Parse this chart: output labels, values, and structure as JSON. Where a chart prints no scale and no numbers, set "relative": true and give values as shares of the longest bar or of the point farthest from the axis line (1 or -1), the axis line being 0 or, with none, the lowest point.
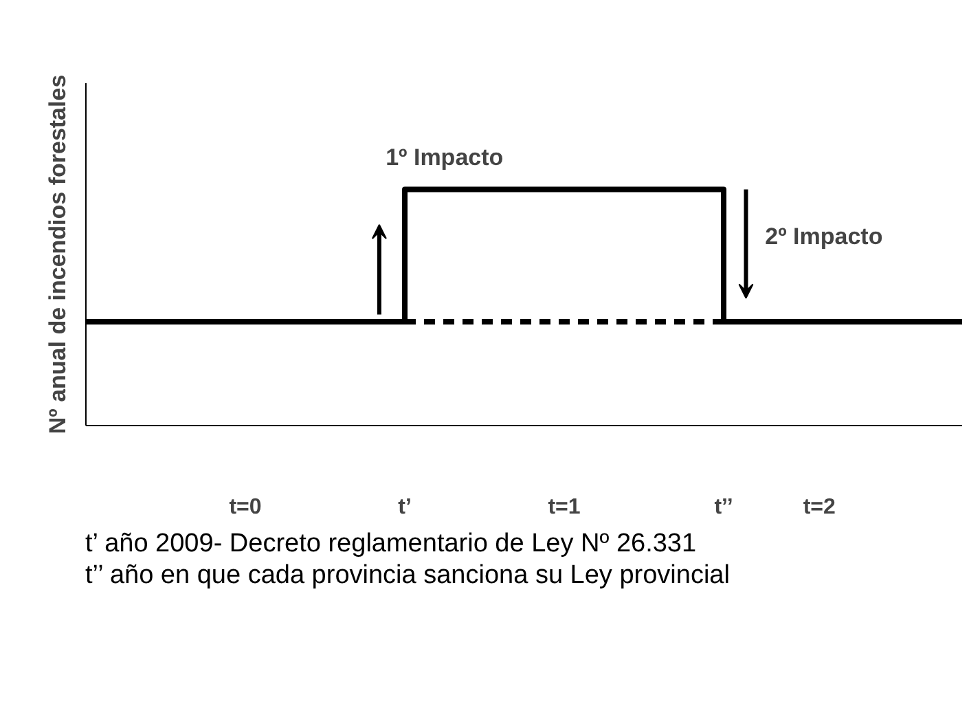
{
  "chart_data": {
    "type": "step",
    "relative": true,
    "ylabel": "Nº anual de incendios forestales",
    "xlim": [
      0,
      2.75
    ],
    "xticks": [
      {
        "value": 0.5,
        "label": "t=0"
      },
      {
        "value": 1,
        "label": "t’"
      },
      {
        "value": 1.5,
        "label": "t=1"
      },
      {
        "value": 2,
        "label": "t’’"
      },
      {
        "value": 2.3,
        "label": "t=2"
      }
    ],
    "series": [
      {
        "color": "#000000",
        "x": [
          0,
          1,
          2,
          2.75
        ],
        "values": [
          0.44,
          1,
          0.44,
          0.44
        ],
        "line_style": "solid"
      },
      {
        "type": "line",
        "color": "#000000",
        "x": [
          1,
          2
        ],
        "values": [
          0.44,
          0.44
        ],
        "line_style": "dashed"
      }
    ],
    "annotations": [
      {
        "text": "1º Impacto",
        "x": 1,
        "y": 1
      },
      {
        "text": "2º Impacto",
        "x": 2,
        "y": 0.8
      },
      "t’ año 2009- Decreto reglamentario de Ley Nº 26.331",
      "t’’ año en que cada provincia sanciona su Ley provincial"
    ],
    "grid": false
  }
}
